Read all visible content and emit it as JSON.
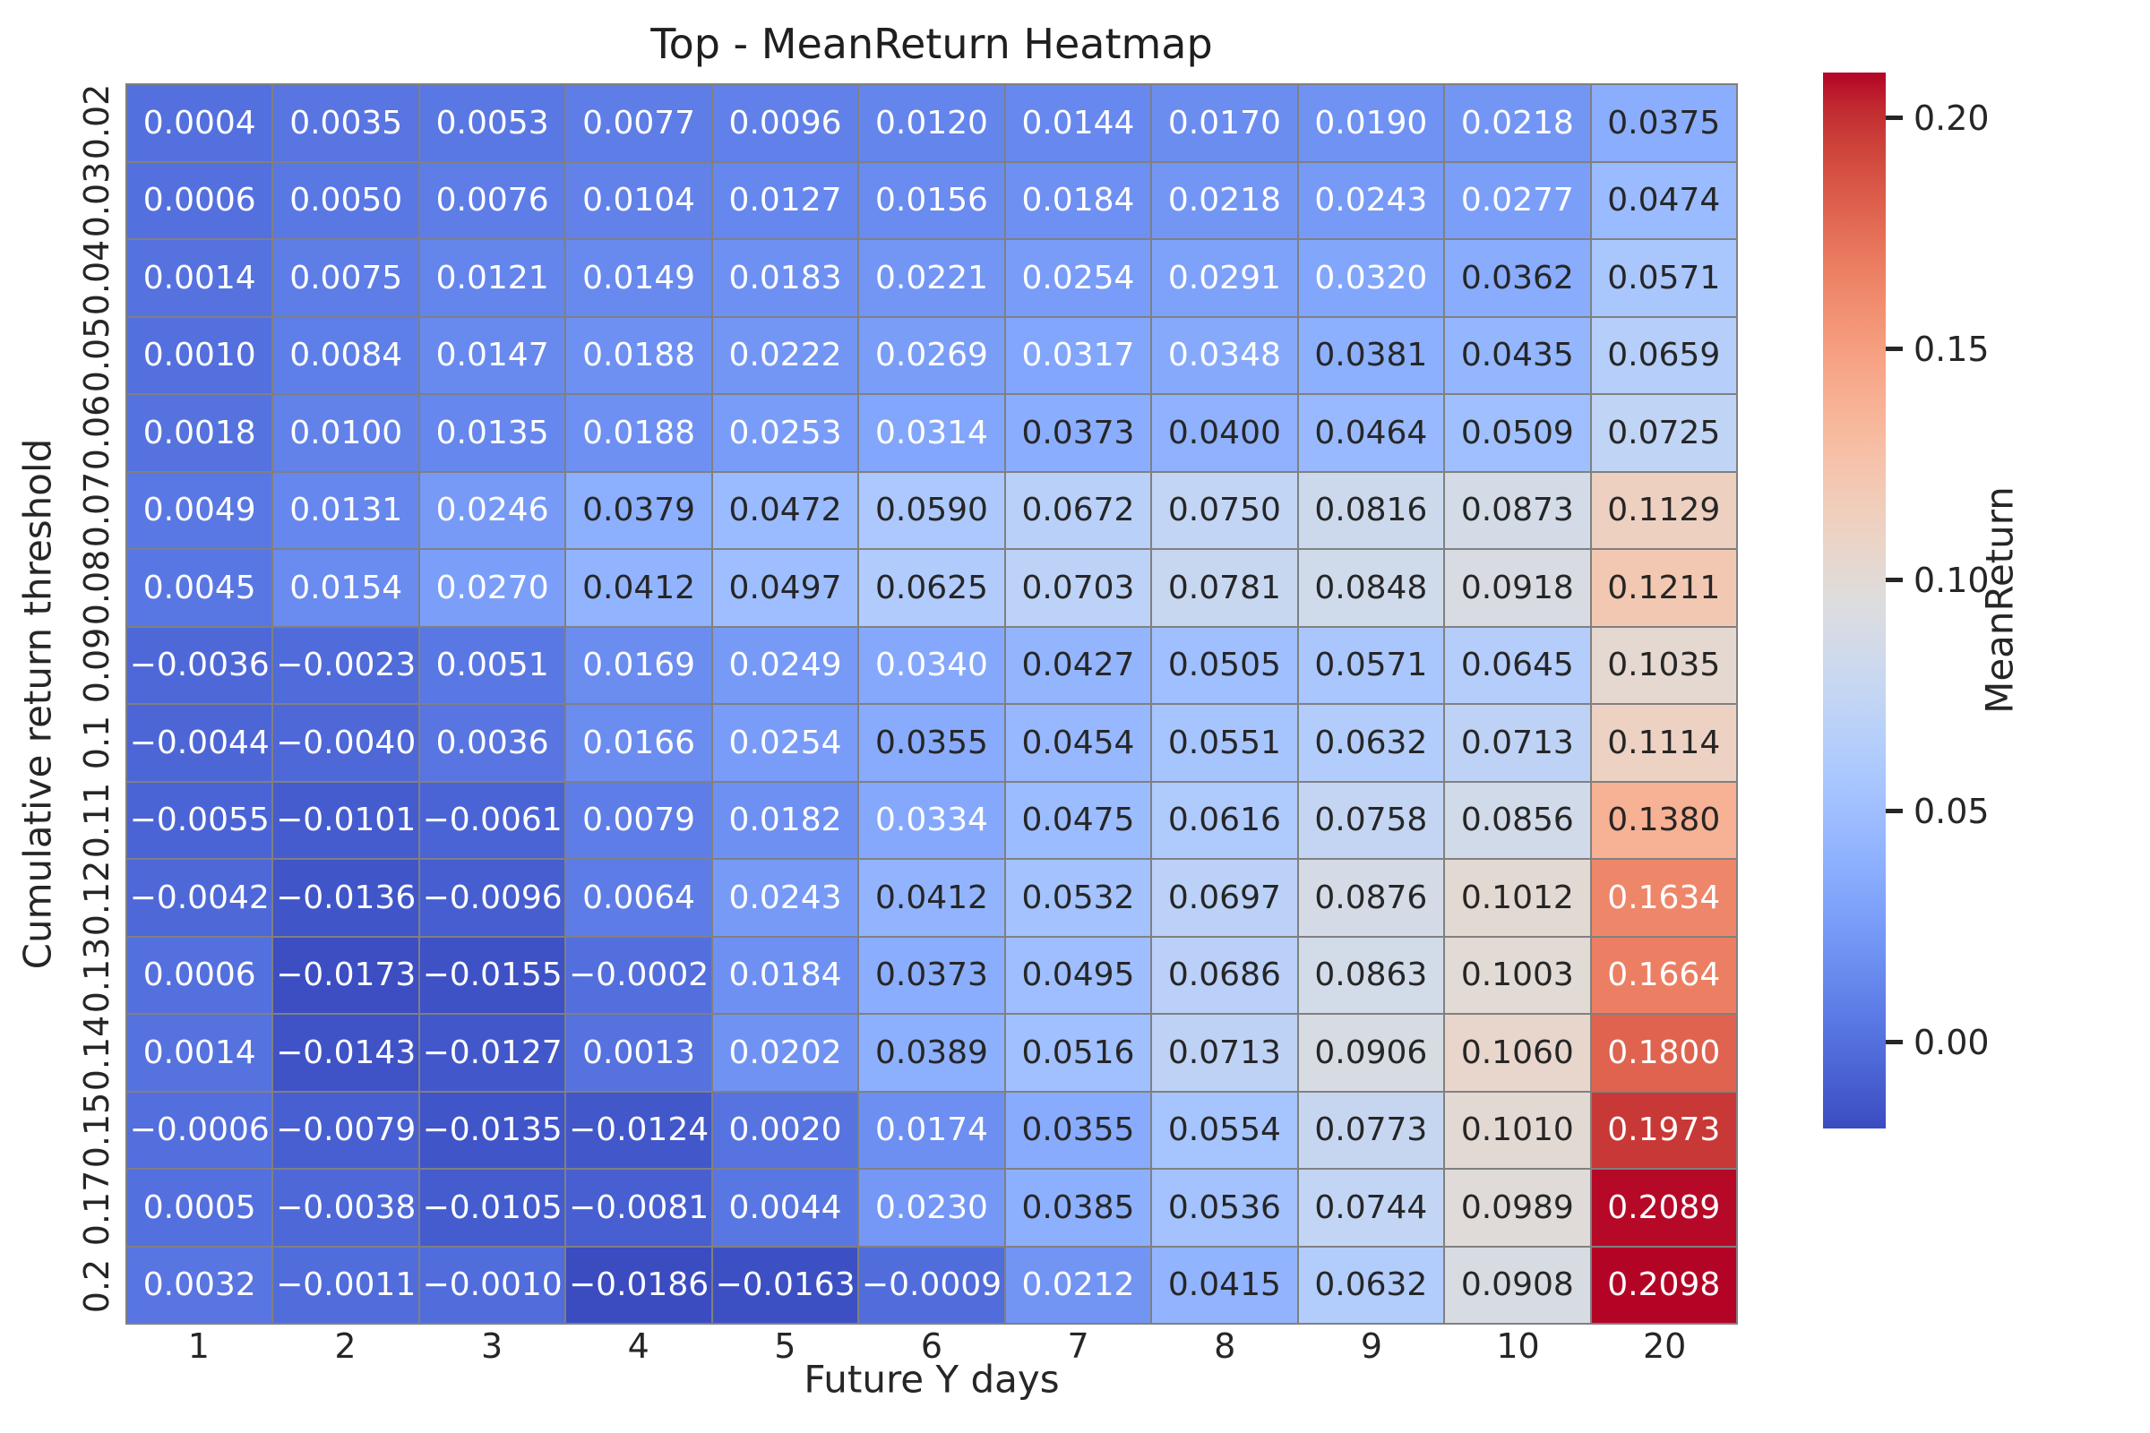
{
  "title": "Top - MeanReturn Heatmap",
  "colors": {
    "background": "#ffffff",
    "grid_line": "#808080",
    "text": "#262626",
    "annot_light": "#ffffff",
    "annot_dark": "#262626",
    "cmap_low": "#3b4cc0",
    "cmap_mid": "#dddddd",
    "cmap_high": "#b40426"
  },
  "chart_data": {
    "type": "heatmap",
    "title": "Top - MeanReturn Heatmap",
    "xlabel": "Future Y days",
    "ylabel": "Cumulative return threshold",
    "colormap": "coolwarm",
    "vmin": -0.0186,
    "vmax": 0.2098,
    "grid": true,
    "x_categories": [
      "1",
      "2",
      "3",
      "4",
      "5",
      "6",
      "7",
      "8",
      "9",
      "10",
      "20"
    ],
    "y_categories": [
      "0.02",
      "0.03",
      "0.04",
      "0.05",
      "0.06",
      "0.07",
      "0.08",
      "0.09",
      "0.1",
      "0.11",
      "0.12",
      "0.13",
      "0.14",
      "0.15",
      "0.17",
      "0.2"
    ],
    "values": [
      [
        0.0004,
        0.0035,
        0.0053,
        0.0077,
        0.0096,
        0.012,
        0.0144,
        0.017,
        0.019,
        0.0218,
        0.0375
      ],
      [
        0.0006,
        0.005,
        0.0076,
        0.0104,
        0.0127,
        0.0156,
        0.0184,
        0.0218,
        0.0243,
        0.0277,
        0.0474
      ],
      [
        0.0014,
        0.0075,
        0.0121,
        0.0149,
        0.0183,
        0.0221,
        0.0254,
        0.0291,
        0.032,
        0.0362,
        0.0571
      ],
      [
        0.001,
        0.0084,
        0.0147,
        0.0188,
        0.0222,
        0.0269,
        0.0317,
        0.0348,
        0.0381,
        0.0435,
        0.0659
      ],
      [
        0.0018,
        0.01,
        0.0135,
        0.0188,
        0.0253,
        0.0314,
        0.0373,
        0.04,
        0.0464,
        0.0509,
        0.0725
      ],
      [
        0.0049,
        0.0131,
        0.0246,
        0.0379,
        0.0472,
        0.059,
        0.0672,
        0.075,
        0.0816,
        0.0873,
        0.1129
      ],
      [
        0.0045,
        0.0154,
        0.027,
        0.0412,
        0.0497,
        0.0625,
        0.0703,
        0.0781,
        0.0848,
        0.0918,
        0.1211
      ],
      [
        -0.0036,
        -0.0023,
        0.0051,
        0.0169,
        0.0249,
        0.034,
        0.0427,
        0.0505,
        0.0571,
        0.0645,
        0.1035
      ],
      [
        -0.0044,
        -0.004,
        0.0036,
        0.0166,
        0.0254,
        0.0355,
        0.0454,
        0.0551,
        0.0632,
        0.0713,
        0.1114
      ],
      [
        -0.0055,
        -0.0101,
        -0.0061,
        0.0079,
        0.0182,
        0.0334,
        0.0475,
        0.0616,
        0.0758,
        0.0856,
        0.138
      ],
      [
        -0.0042,
        -0.0136,
        -0.0096,
        0.0064,
        0.0243,
        0.0412,
        0.0532,
        0.0697,
        0.0876,
        0.1012,
        0.1634
      ],
      [
        0.0006,
        -0.0173,
        -0.0155,
        -0.0002,
        0.0184,
        0.0373,
        0.0495,
        0.0686,
        0.0863,
        0.1003,
        0.1664
      ],
      [
        0.0014,
        -0.0143,
        -0.0127,
        0.0013,
        0.0202,
        0.0389,
        0.0516,
        0.0713,
        0.0906,
        0.106,
        0.18
      ],
      [
        -0.0006,
        -0.0079,
        -0.0135,
        -0.0124,
        0.002,
        0.0174,
        0.0355,
        0.0554,
        0.0773,
        0.101,
        0.1973
      ],
      [
        0.0005,
        -0.0038,
        -0.0105,
        -0.0081,
        0.0044,
        0.023,
        0.0385,
        0.0536,
        0.0744,
        0.0989,
        0.2089
      ],
      [
        0.0032,
        -0.0011,
        -0.001,
        -0.0186,
        -0.0163,
        -0.0009,
        0.0212,
        0.0415,
        0.0632,
        0.0908,
        0.2098
      ]
    ],
    "value_decimals": 4,
    "colorbar": {
      "label": "MeanReturn",
      "tick_labels": [
        "0.20",
        "0.15",
        "0.10",
        "0.05",
        "0.00"
      ],
      "tick_values": [
        0.2,
        0.15,
        0.1,
        0.05,
        0.0
      ],
      "position": "right"
    }
  }
}
